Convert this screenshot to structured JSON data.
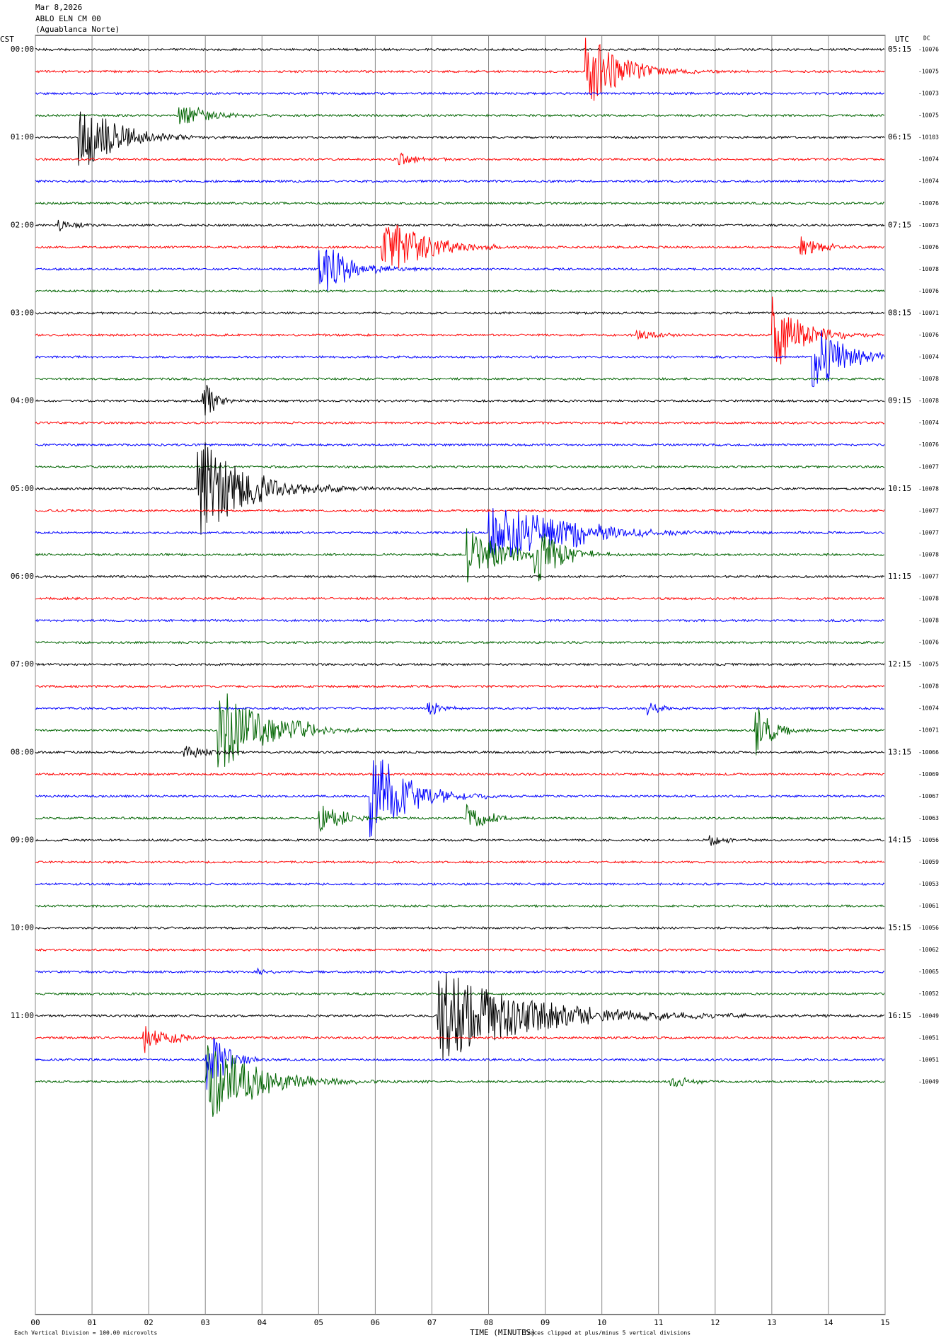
{
  "header": {
    "date": "Mar 8,2026",
    "station": "ABLO ELN CM 00",
    "site": "(Aguablanca Norte)",
    "left_zone": "CST",
    "right_zone": "UTC",
    "dc_label": "DC"
  },
  "chart_data": {
    "type": "helicorder",
    "colors": [
      "#000000",
      "#ff0000",
      "#0000ff",
      "#006400"
    ],
    "xlim": [
      0,
      15
    ],
    "xticks": [
      {
        "value": 0,
        "label": "00"
      },
      {
        "value": 1,
        "label": "01"
      },
      {
        "value": 2,
        "label": "02"
      },
      {
        "value": 3,
        "label": "03"
      },
      {
        "value": 4,
        "label": "04"
      },
      {
        "value": 5,
        "label": "05"
      },
      {
        "value": 6,
        "label": "06"
      },
      {
        "value": 7,
        "label": "07"
      },
      {
        "value": 8,
        "label": "08"
      },
      {
        "value": 9,
        "label": "09"
      },
      10,
      11,
      12,
      13,
      14,
      15
    ],
    "xlabel": "TIME (MINUTES)",
    "left_labels": [
      "00:00",
      "01:00",
      "02:00",
      "03:00",
      "04:00",
      "05:00",
      "06:00",
      "07:00",
      "08:00",
      "09:00",
      "10:00",
      "11:00"
    ],
    "right_labels": [
      "05:15",
      "06:15",
      "07:15",
      "08:15",
      "09:15",
      "10:15",
      "11:15",
      "12:15",
      "13:15",
      "14:15",
      "15:15",
      "16:15"
    ],
    "dc_values": [
      -10076,
      -10075,
      -10073,
      -10075,
      -10103,
      -10074,
      -10074,
      -10076,
      -10073,
      -10076,
      -10078,
      -10076,
      -10071,
      -10076,
      -10074,
      -10078,
      -10078,
      -10074,
      -10076,
      -10077,
      -10078,
      -10077,
      -10077,
      -10078,
      -10077,
      -10078,
      -10078,
      -10076,
      -10075,
      -10078,
      -10074,
      -10071,
      -10066,
      -10069,
      -10067,
      -10063,
      -10056,
      -10059,
      -10053,
      -10061,
      -10056,
      -10062,
      -10065,
      -10052,
      -10049,
      -10051,
      -10051,
      -10049
    ]
  },
  "footer": {
    "scale": "Each Vertical Division =  100.00 microvolts",
    "clip": "Traces clipped at plus/minus 5 vertical divisions"
  }
}
